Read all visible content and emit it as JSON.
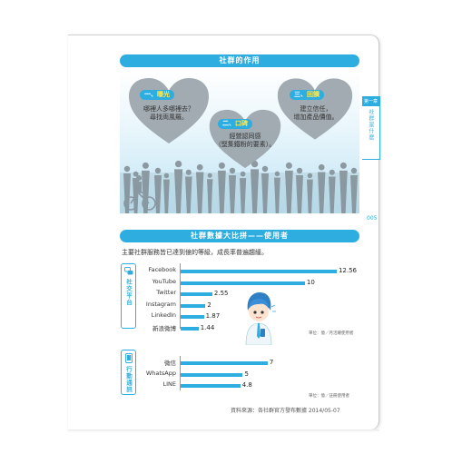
{
  "banner1": "社群的作用",
  "hearts": [
    {
      "tag_prefix": "一、",
      "tag_highlight": "曝光",
      "text": [
        "哪裡人多哪裡去？",
        "尋找両風羅。"
      ]
    },
    {
      "tag_prefix": "二、",
      "tag_highlight": "口碑",
      "text": [
        "經營認同感",
        "（堅集鐵粉的要素）。"
      ]
    },
    {
      "tag_prefix": "三、",
      "tag_highlight": "回饋",
      "text": [
        "建立信任，",
        "增加產品價值。"
      ]
    }
  ],
  "sidetab": {
    "top": "第一章",
    "vertical": "社群是什麼"
  },
  "page_number": "005",
  "banner2": "社群數據大比拼——使用者",
  "intro": "主要社群服務皆已達到億的等級，成長率普遍趨緩。",
  "chart_data": [
    {
      "type": "bar",
      "category_label": "社交平台",
      "categories": [
        "Facebook",
        "YouTube",
        "Twitter",
        "Instagram",
        "LinkedIn",
        "新浪微博"
      ],
      "values": [
        12.56,
        10,
        2.55,
        2,
        1.87,
        1.44
      ],
      "value_labels": [
        "12.56",
        "10",
        "2.55",
        "2",
        "1.87",
        "1.44"
      ],
      "unit_note": "單位：億／月活躍使用者",
      "xlim": [
        0,
        13
      ]
    },
    {
      "type": "bar",
      "category_label": "行動通訊",
      "categories": [
        "微信",
        "WhatsApp",
        "LINE"
      ],
      "values": [
        7,
        5,
        4.8
      ],
      "value_labels": [
        "7",
        "5",
        "4.8"
      ],
      "unit_note": "單位：億／註冊使用者",
      "xlim": [
        0,
        13
      ]
    }
  ],
  "source": "資料來源：各社群官方發布數據 2014/05-07",
  "colors": {
    "accent": "#2eaee0",
    "highlight": "#ffe94d",
    "heart": "#9aa4aa"
  },
  "icons": {
    "social": "chat-bubbles-icon",
    "mobile": "smartphone-icon"
  }
}
